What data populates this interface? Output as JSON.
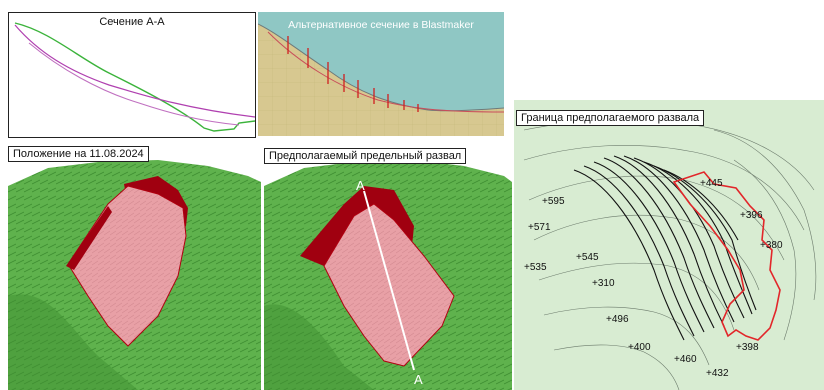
{
  "section_chart": {
    "title": "Сечение А-А"
  },
  "blastmaker": {
    "title": "Альтернативное сечение в Blastmaker"
  },
  "position": {
    "title": "Положение на 11.08.2024"
  },
  "predicted": {
    "title": "Предполагаемый предельный развал",
    "marker_top": "A",
    "marker_bottom": "A"
  },
  "contour_map": {
    "title": "Граница предполагаемого развала",
    "elevations": [
      "+595",
      "+445",
      "+571",
      "+396",
      "+380",
      "+545",
      "+310",
      "+535",
      "+496",
      "+400",
      "+398",
      "+460",
      "+432"
    ]
  },
  "colors": {
    "terrain": "#5fb24d",
    "slide": "#e8a0a6",
    "edge": "#b00010",
    "boundary": "#e2262a",
    "sky": "#8fc7c4",
    "ground": "#d7c890"
  }
}
